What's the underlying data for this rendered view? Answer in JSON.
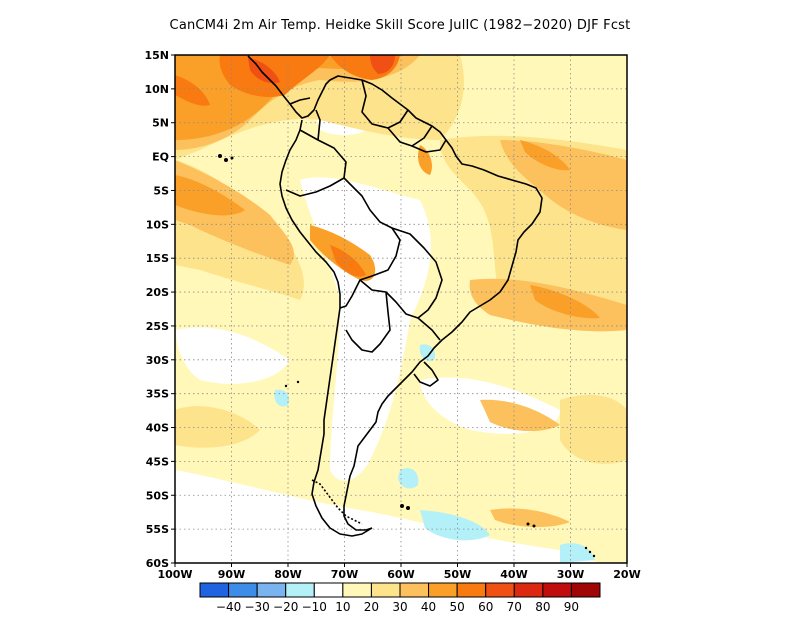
{
  "title": "CanCM4i  2m Air Temp. Heidke Skill Score JulIC (1982−2020) DJF Fcst",
  "lat_labels": [
    "15N",
    "10N",
    "5N",
    "EQ",
    "5S",
    "10S",
    "15S",
    "20S",
    "25S",
    "30S",
    "35S",
    "40S",
    "45S",
    "50S",
    "55S",
    "60S"
  ],
  "lon_labels": [
    "100W",
    "90W",
    "80W",
    "70W",
    "60W",
    "50W",
    "40W",
    "30W",
    "20W"
  ],
  "colorbar": {
    "colors": [
      "#1f63e0",
      "#3c8ce8",
      "#79b4f0",
      "#b4f0f8",
      "#ffffff",
      "#fff8b8",
      "#fde48c",
      "#fcc15c",
      "#faa028",
      "#f87a10",
      "#f05014",
      "#dc2810",
      "#c00c0c",
      "#a00606"
    ],
    "labels": [
      "−40",
      "−30",
      "−20",
      "−10",
      "10",
      "20",
      "30",
      "40",
      "50",
      "60",
      "70",
      "80",
      "90"
    ]
  },
  "map_colors": {
    "c10": "#fff8b8",
    "c20": "#fde48c",
    "c30": "#fcc15c",
    "c40": "#faa028",
    "c50": "#f87a10",
    "c60": "#f05014",
    "cneg": "#b4f0f8"
  }
}
